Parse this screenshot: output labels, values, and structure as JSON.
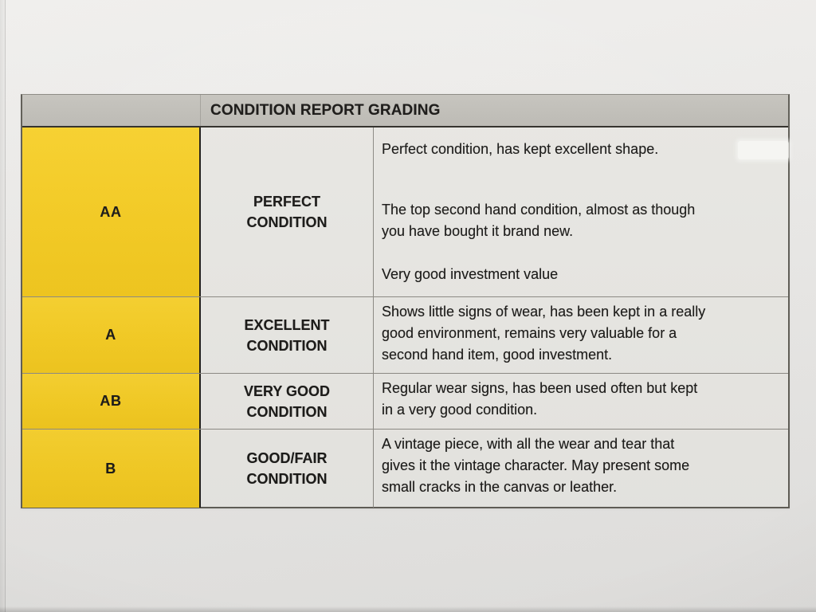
{
  "photo": {
    "paper_color": "#ebeae8"
  },
  "table": {
    "title": "CONDITION REPORT GRADING",
    "colors": {
      "header_bg": "#c2c0ba",
      "grade_column_bg": "#f5cc24",
      "cell_bg": "#e9e8e4",
      "ink": "#1c1b19"
    },
    "columns": [
      "grade",
      "condition",
      "description"
    ],
    "rows": [
      {
        "grade": "AA",
        "condition": "PERFECT\nCONDITION",
        "description": [
          "Perfect condition, has kept excellent shape.",
          "The top second hand condition, almost as though\nyou have bought it brand new.",
          "Very good investment value"
        ]
      },
      {
        "grade": "A",
        "condition": "EXCELLENT\nCONDITION",
        "description": [
          "Shows little signs of wear, has been kept in a really\ngood environment, remains very valuable for a\nsecond hand item, good investment."
        ]
      },
      {
        "grade": "AB",
        "condition": "VERY GOOD\nCONDITION",
        "description": [
          "Regular wear signs, has been used often but kept\nin a very good condition."
        ]
      },
      {
        "grade": "B",
        "condition": "GOOD/FAIR\nCONDITION",
        "description": [
          "A vintage piece, with all the wear and tear that\ngives it the vintage character. May present some\nsmall cracks in the canvas or leather."
        ]
      }
    ]
  }
}
